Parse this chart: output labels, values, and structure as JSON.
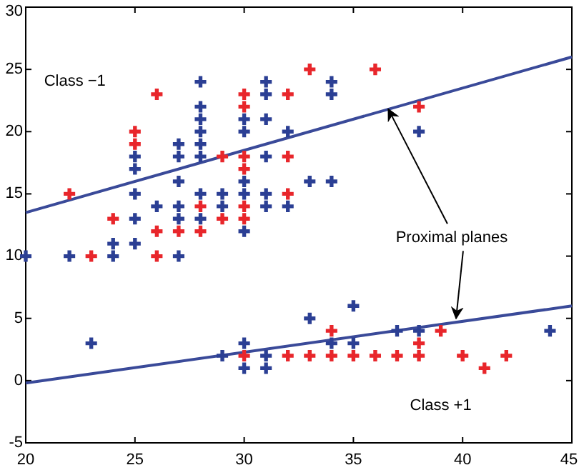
{
  "chart_data": {
    "type": "scatter",
    "marker": "cross",
    "xlim": [
      20,
      45
    ],
    "ylim": [
      -5,
      30
    ],
    "xticks": [
      20,
      25,
      30,
      35,
      40,
      45
    ],
    "yticks": [
      -5,
      0,
      5,
      10,
      15,
      20,
      25,
      30
    ],
    "grid": false,
    "series": [
      {
        "color": "#e8262b",
        "x": [
          22,
          24,
          26,
          25,
          25,
          26,
          27,
          28,
          28,
          29,
          29,
          30,
          30,
          30,
          30,
          30,
          30,
          32,
          32,
          32,
          33,
          36,
          38,
          23,
          26,
          30,
          32,
          33,
          34,
          34,
          35,
          36,
          37,
          38,
          38,
          39,
          40,
          41,
          42
        ],
        "values": [
          15,
          13,
          23,
          20,
          19,
          12,
          12,
          14,
          12,
          18,
          13,
          23,
          22,
          18,
          17,
          14,
          13,
          23,
          18,
          15,
          25,
          25,
          22,
          10,
          10,
          2,
          2,
          2,
          2,
          4,
          2,
          2,
          2,
          2,
          3,
          4,
          2,
          1,
          2
        ]
      },
      {
        "color": "#2b3f94",
        "x": [
          25,
          25,
          25,
          25,
          26,
          27,
          27,
          27,
          27,
          27,
          28,
          28,
          28,
          28,
          28,
          28,
          28,
          28,
          29,
          29,
          30,
          30,
          30,
          30,
          30,
          31,
          31,
          31,
          31,
          31,
          31,
          32,
          32,
          34,
          34,
          38,
          33,
          34,
          20,
          22,
          24,
          24,
          25,
          27,
          23,
          29,
          30,
          30,
          31,
          31,
          33,
          34,
          35,
          35,
          37,
          38,
          44
        ],
        "values": [
          18,
          17,
          15,
          13,
          14,
          19,
          18,
          16,
          14,
          13,
          24,
          22,
          21,
          20,
          19,
          18,
          15,
          13,
          15,
          14,
          21,
          20,
          16,
          15,
          12,
          24,
          23,
          21,
          18,
          15,
          14,
          20,
          14,
          24,
          23,
          20,
          16,
          16,
          10,
          10,
          11,
          10,
          11,
          10,
          3,
          2,
          3,
          1,
          2,
          1,
          5,
          3,
          6,
          3,
          4,
          4,
          4
        ]
      },
      {
        "type": "line",
        "marker": "none",
        "color": "#3a4a99",
        "x": [
          20,
          45
        ],
        "values": [
          13.5,
          26
        ]
      },
      {
        "type": "line",
        "marker": "none",
        "color": "#3a4a99",
        "x": [
          20,
          45
        ],
        "values": [
          -0.2,
          6
        ]
      }
    ],
    "annotations": [
      "Class −1",
      "Class +1",
      {
        "text": "Proximal planes",
        "x": 36.6,
        "y": 21.8
      }
    ]
  }
}
